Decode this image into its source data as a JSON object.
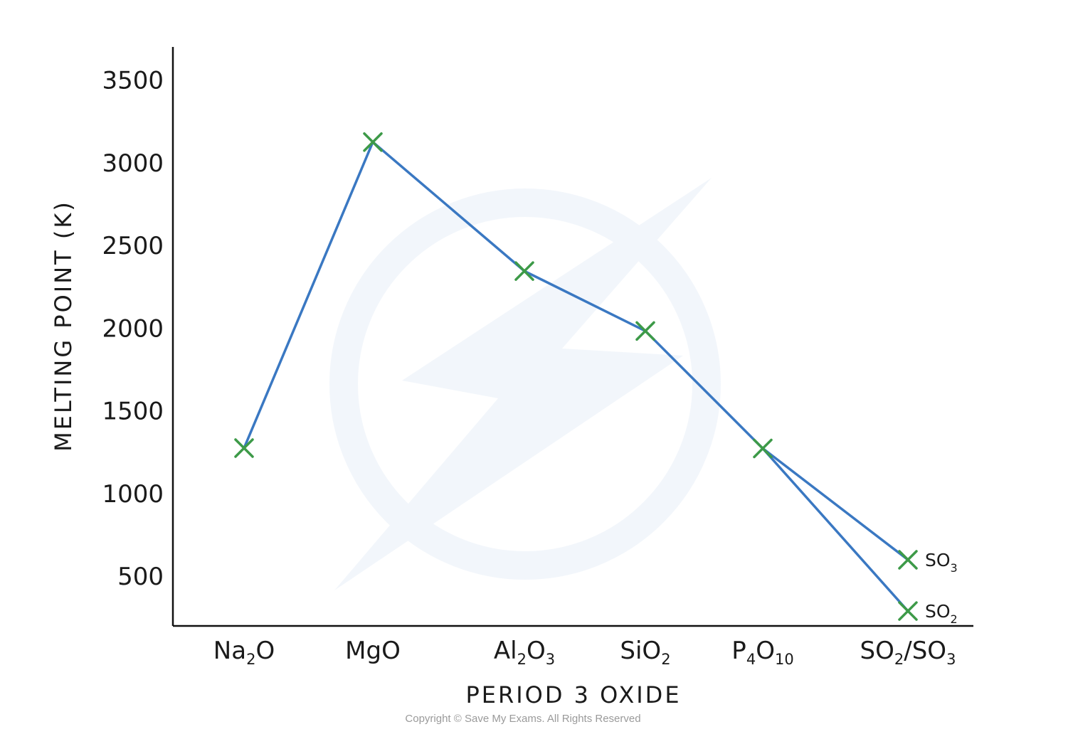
{
  "chart_data": {
    "type": "line",
    "xlabel": "PERIOD 3 OXIDE",
    "ylabel": "MELTING POINT (K)",
    "ylim": [
      200,
      3700
    ],
    "yticks": [
      500,
      1000,
      1500,
      2000,
      2500,
      3000,
      3500
    ],
    "categories": [
      {
        "parts": [
          [
            "Na",
            false
          ],
          [
            "2",
            true
          ],
          [
            "O",
            false
          ]
        ]
      },
      {
        "parts": [
          [
            "MgO",
            false
          ]
        ]
      },
      {
        "parts": [
          [
            "Al",
            false
          ],
          [
            "2",
            true
          ],
          [
            "O",
            false
          ],
          [
            "3",
            true
          ]
        ]
      },
      {
        "parts": [
          [
            "SiO",
            false
          ],
          [
            "2",
            true
          ]
        ]
      },
      {
        "parts": [
          [
            "P",
            false
          ],
          [
            "4",
            true
          ],
          [
            "O",
            false
          ],
          [
            "10",
            true
          ]
        ]
      },
      {
        "parts": [
          [
            "SO",
            false
          ],
          [
            "2",
            true
          ],
          [
            "/SO",
            false
          ],
          [
            "3",
            true
          ]
        ]
      }
    ],
    "series": [
      {
        "values": [
          1275,
          3125,
          2345,
          1983,
          1273,
          290
        ]
      },
      {
        "values": [
          null,
          null,
          null,
          null,
          1273,
          600
        ]
      }
    ],
    "annotations": [
      {
        "point": [
          5,
          600
        ],
        "parts": [
          [
            "SO",
            false
          ],
          [
            "3",
            true
          ]
        ]
      },
      {
        "point": [
          5,
          290
        ],
        "parts": [
          [
            "SO",
            false
          ],
          [
            "2",
            true
          ]
        ]
      }
    ],
    "line_color": "#3a78c2",
    "marker_color": "#3d9a48",
    "grid": false
  },
  "copyright": "Copyright © Save My Exams. All Rights Reserved"
}
